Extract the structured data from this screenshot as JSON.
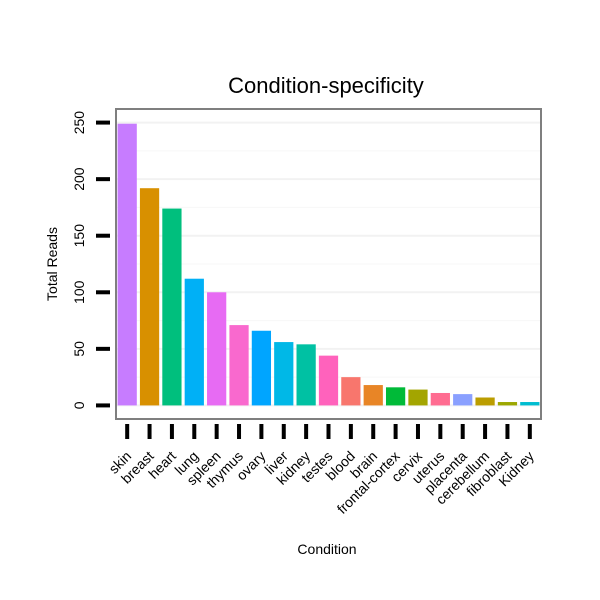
{
  "chart_data": {
    "type": "bar",
    "title": "Condition-specificity",
    "xlabel": "Condition",
    "ylabel": "Total Reads",
    "ylim": [
      -12,
      262
    ],
    "yticks": [
      0,
      50,
      100,
      150,
      200,
      250
    ],
    "grid": true,
    "categories": [
      "skin",
      "breast",
      "heart",
      "lung",
      "spleen",
      "thymus",
      "ovary",
      "liver",
      "kidney",
      "testes",
      "blood",
      "brain",
      "frontal-cortex",
      "cervix",
      "uterus",
      "placenta",
      "cerebellum",
      "fibroblast",
      "Kidney"
    ],
    "values": [
      249,
      192,
      174,
      112,
      100,
      71,
      66,
      56,
      54,
      44,
      25,
      18,
      16,
      14,
      11,
      10,
      7,
      3,
      3
    ],
    "colors": [
      "#C77CFF",
      "#D89000",
      "#00BF7D",
      "#00B0F6",
      "#E76BF3",
      "#F969CE",
      "#00A5FF",
      "#00B8E7",
      "#00C1A3",
      "#FF62BC",
      "#F8766D",
      "#E88526",
      "#00BA38",
      "#A3A500",
      "#FF6C91",
      "#8AA0FF",
      "#BB9D00",
      "#9CA700",
      "#00BDD0"
    ]
  }
}
